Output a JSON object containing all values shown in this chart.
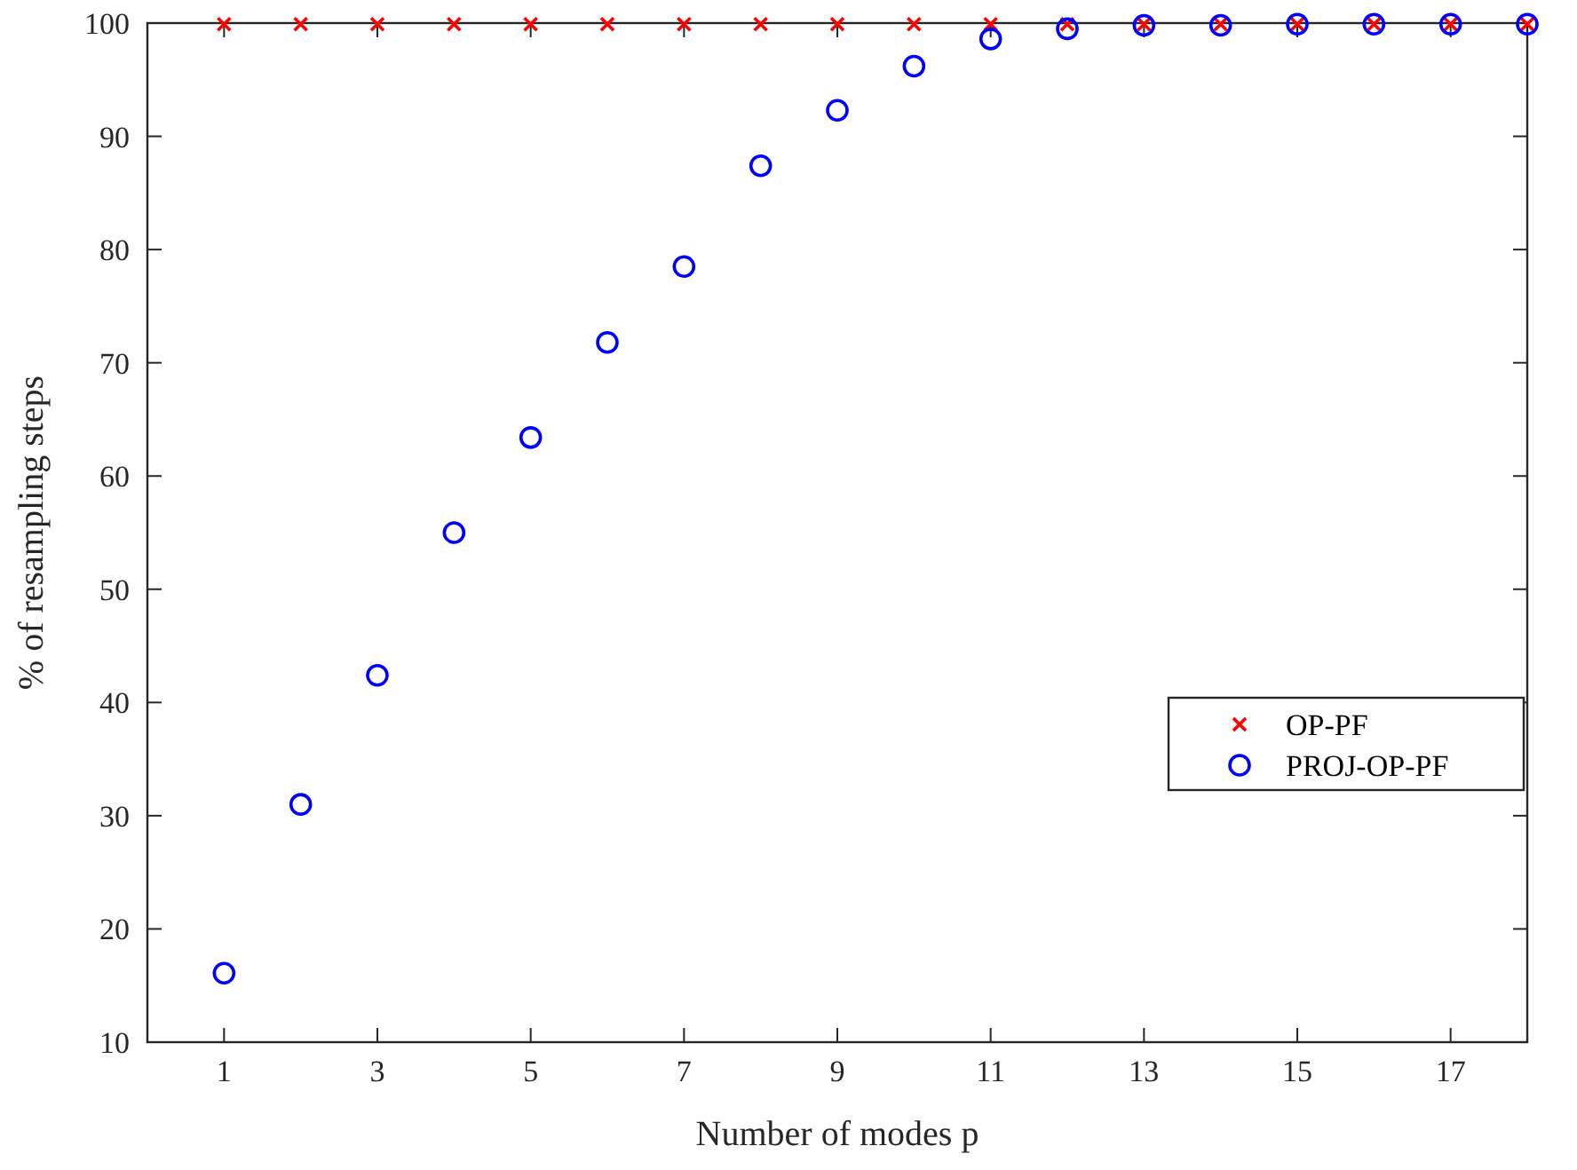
{
  "chart_data": {
    "type": "scatter",
    "xlabel": "Number of modes p",
    "ylabel": "% of resampling steps",
    "x": [
      1,
      2,
      3,
      4,
      5,
      6,
      7,
      8,
      9,
      10,
      11,
      12,
      13,
      14,
      15,
      16,
      17,
      18
    ],
    "xlim": [
      0,
      18
    ],
    "xticks": [
      1,
      3,
      5,
      7,
      9,
      11,
      13,
      15,
      17
    ],
    "ylim": [
      10,
      100
    ],
    "yticks": [
      10,
      20,
      30,
      40,
      50,
      60,
      70,
      80,
      90,
      100
    ],
    "legend": "right",
    "grid": false,
    "series": [
      {
        "name": "OP-PF",
        "color": "#ff0000",
        "marker": "cross",
        "values": [
          99.9,
          99.9,
          99.9,
          99.9,
          99.9,
          99.9,
          99.9,
          99.9,
          99.9,
          99.9,
          99.9,
          99.9,
          99.9,
          99.9,
          99.9,
          99.9,
          99.9,
          99.9
        ]
      },
      {
        "name": "PROJ-OP-PF",
        "color": "#0000ff",
        "marker": "circle",
        "values": [
          16.1,
          31,
          42.4,
          55,
          63.4,
          71.8,
          78.5,
          87.4,
          92.3,
          96.2,
          98.6,
          99.5,
          99.8,
          99.8,
          99.9,
          99.9,
          99.9,
          99.9
        ]
      }
    ]
  }
}
